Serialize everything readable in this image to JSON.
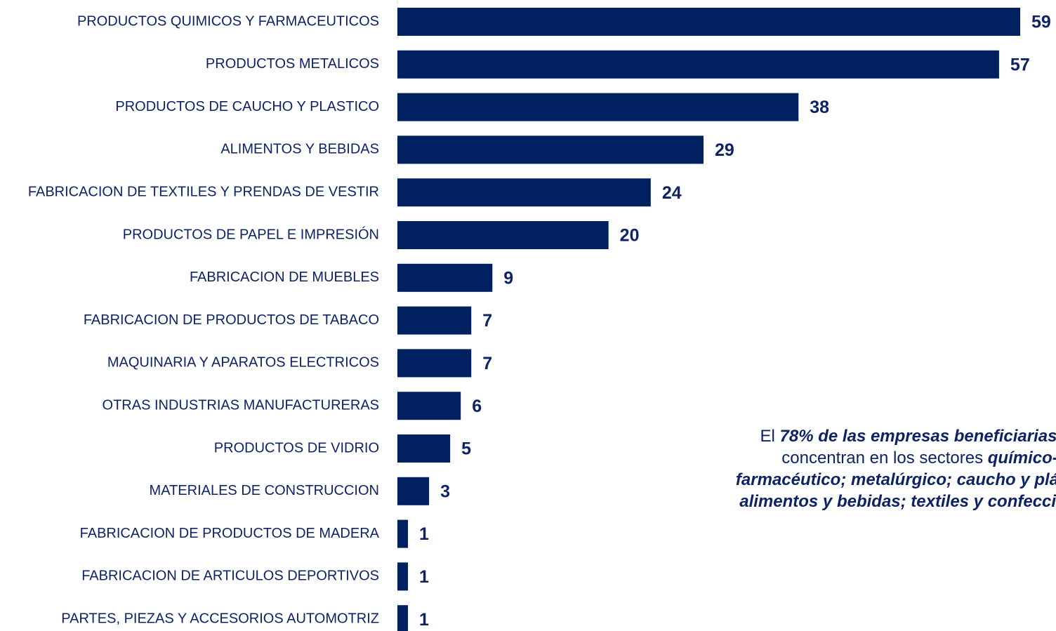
{
  "chart_data": {
    "type": "hbar",
    "categories": [
      "PRODUCTOS QUIMICOS Y FARMACEUTICOS",
      "PRODUCTOS METALICOS",
      "PRODUCTOS DE CAUCHO Y PLASTICO",
      "ALIMENTOS Y BEBIDAS",
      "FABRICACION DE TEXTILES Y PRENDAS DE VESTIR",
      "PRODUCTOS DE PAPEL E IMPRESIÓN",
      "FABRICACION DE MUEBLES",
      "FABRICACION DE PRODUCTOS DE TABACO",
      "MAQUINARIA Y APARATOS ELECTRICOS",
      "OTRAS INDUSTRIAS MANUFACTURERAS",
      "PRODUCTOS DE VIDRIO",
      "MATERIALES DE CONSTRUCCION",
      "FABRICACION DE PRODUCTOS DE MADERA",
      "FABRICACION DE ARTICULOS DEPORTIVOS",
      "PARTES, PIEZAS Y ACCESORIOS AUTOMOTRIZ"
    ],
    "values": [
      59,
      57,
      38,
      29,
      24,
      20,
      9,
      7,
      7,
      6,
      5,
      3,
      1,
      1,
      1
    ],
    "color": "#002060",
    "xlim": [
      0,
      59
    ],
    "annotation": [
      {
        "text": "El ",
        "emphasis": false
      },
      {
        "text": "78% de las empresas beneficiarias",
        "emphasis": true
      },
      {
        "text": " se concentran en los sectores ",
        "emphasis": false
      },
      {
        "text": "químico-farmacéutico; metalúrgico; caucho y plástico; alimentos y bebidas; textiles y confecciones.",
        "emphasis": true
      }
    ]
  }
}
